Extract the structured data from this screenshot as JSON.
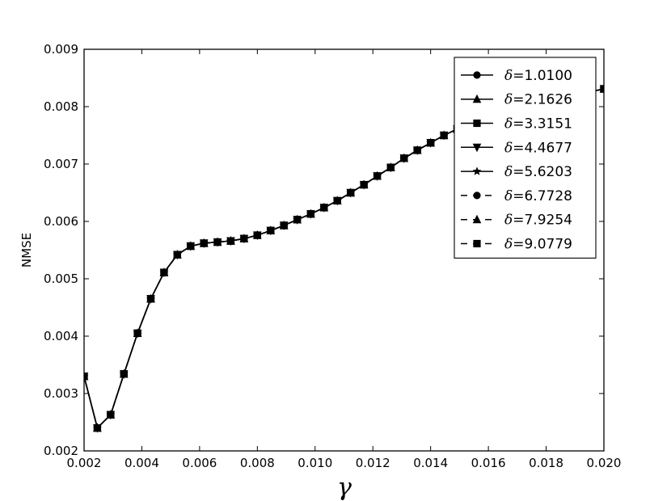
{
  "chart_data": {
    "type": "line",
    "xlabel": "γ",
    "ylabel": "NMSE",
    "xlim": [
      0.002,
      0.02
    ],
    "ylim": [
      0.002,
      0.009
    ],
    "xticks": [
      0.002,
      0.004,
      0.006,
      0.008,
      0.01,
      0.012,
      0.014,
      0.016,
      0.018,
      0.02
    ],
    "xtick_labels": [
      "0.002",
      "0.004",
      "0.006",
      "0.008",
      "0.010",
      "0.012",
      "0.014",
      "0.016",
      "0.018",
      "0.020"
    ],
    "yticks": [
      0.002,
      0.003,
      0.004,
      0.005,
      0.006,
      0.007,
      0.008,
      0.009
    ],
    "ytick_labels": [
      "0.002",
      "0.003",
      "0.004",
      "0.005",
      "0.006",
      "0.007",
      "0.008",
      "0.009"
    ],
    "grid": false,
    "legend_position": "top-right",
    "x": [
      0.002,
      0.00246,
      0.00292,
      0.00338,
      0.00385,
      0.00431,
      0.00477,
      0.00523,
      0.00569,
      0.00615,
      0.00662,
      0.00708,
      0.00754,
      0.008,
      0.00846,
      0.00892,
      0.00938,
      0.00985,
      0.01031,
      0.01077,
      0.01123,
      0.01169,
      0.01215,
      0.01262,
      0.01308,
      0.01354,
      0.014,
      0.01446,
      0.01492,
      0.01538,
      0.01585,
      0.01631,
      0.01677,
      0.01723,
      0.01769,
      0.01815,
      0.01862,
      0.01908,
      0.01954,
      0.02
    ],
    "series": [
      {
        "name": "δ=1.0100",
        "linestyle": "solid",
        "marker": "circle",
        "values": [
          0.0033,
          0.0024,
          0.00263,
          0.00334,
          0.00405,
          0.00465,
          0.00511,
          0.00542,
          0.00557,
          0.00562,
          0.00564,
          0.00566,
          0.0057,
          0.00576,
          0.00584,
          0.00593,
          0.00603,
          0.00613,
          0.00624,
          0.00636,
          0.0065,
          0.00664,
          0.00679,
          0.00694,
          0.0071,
          0.00724,
          0.00737,
          0.0075,
          0.00761,
          0.00771,
          0.0078,
          0.00788,
          0.00795,
          0.00801,
          0.00806,
          0.00811,
          0.00816,
          0.00821,
          0.00826,
          0.00831
        ]
      },
      {
        "name": "δ=2.1626",
        "linestyle": "solid",
        "marker": "triangle-up",
        "values": [
          0.0033,
          0.0024,
          0.00263,
          0.00334,
          0.00405,
          0.00465,
          0.00511,
          0.00542,
          0.00557,
          0.00562,
          0.00564,
          0.00566,
          0.0057,
          0.00576,
          0.00584,
          0.00593,
          0.00603,
          0.00613,
          0.00624,
          0.00636,
          0.0065,
          0.00664,
          0.00679,
          0.00694,
          0.0071,
          0.00724,
          0.00737,
          0.0075,
          0.00761,
          0.00771,
          0.0078,
          0.00788,
          0.00795,
          0.00801,
          0.00806,
          0.00811,
          0.00816,
          0.00821,
          0.00826,
          0.00831
        ]
      },
      {
        "name": "δ=3.3151",
        "linestyle": "solid",
        "marker": "square",
        "values": [
          0.0033,
          0.0024,
          0.00263,
          0.00334,
          0.00405,
          0.00465,
          0.00511,
          0.00542,
          0.00557,
          0.00562,
          0.00564,
          0.00566,
          0.0057,
          0.00576,
          0.00584,
          0.00593,
          0.00603,
          0.00613,
          0.00624,
          0.00636,
          0.0065,
          0.00664,
          0.00679,
          0.00694,
          0.0071,
          0.00724,
          0.00737,
          0.0075,
          0.00761,
          0.00771,
          0.0078,
          0.00788,
          0.00795,
          0.00801,
          0.00806,
          0.00811,
          0.00816,
          0.00821,
          0.00826,
          0.00831
        ]
      },
      {
        "name": "δ=4.4677",
        "linestyle": "solid",
        "marker": "triangle-down",
        "values": [
          0.0033,
          0.0024,
          0.00263,
          0.00334,
          0.00405,
          0.00465,
          0.00511,
          0.00542,
          0.00557,
          0.00562,
          0.00564,
          0.00566,
          0.0057,
          0.00576,
          0.00584,
          0.00593,
          0.00603,
          0.00613,
          0.00624,
          0.00636,
          0.0065,
          0.00664,
          0.00679,
          0.00694,
          0.0071,
          0.00724,
          0.00737,
          0.0075,
          0.00761,
          0.00771,
          0.0078,
          0.00788,
          0.00795,
          0.00801,
          0.00806,
          0.00811,
          0.00816,
          0.00821,
          0.00826,
          0.00831
        ]
      },
      {
        "name": "δ=5.6203",
        "linestyle": "solid",
        "marker": "star",
        "values": [
          0.0033,
          0.0024,
          0.00263,
          0.00334,
          0.00405,
          0.00465,
          0.00511,
          0.00542,
          0.00557,
          0.00562,
          0.00564,
          0.00566,
          0.0057,
          0.00576,
          0.00584,
          0.00593,
          0.00603,
          0.00613,
          0.00624,
          0.00636,
          0.0065,
          0.00664,
          0.00679,
          0.00694,
          0.0071,
          0.00724,
          0.00737,
          0.0075,
          0.00761,
          0.00771,
          0.0078,
          0.00788,
          0.00795,
          0.00801,
          0.00806,
          0.00811,
          0.00816,
          0.00821,
          0.00826,
          0.00831
        ]
      },
      {
        "name": "δ=6.7728",
        "linestyle": "dashed",
        "marker": "circle",
        "values": [
          0.0033,
          0.0024,
          0.00263,
          0.00334,
          0.00405,
          0.00465,
          0.00511,
          0.00542,
          0.00557,
          0.00562,
          0.00564,
          0.00566,
          0.0057,
          0.00576,
          0.00584,
          0.00593,
          0.00603,
          0.00613,
          0.00624,
          0.00636,
          0.0065,
          0.00664,
          0.00679,
          0.00694,
          0.0071,
          0.00724,
          0.00737,
          0.0075,
          0.00761,
          0.00771,
          0.0078,
          0.00788,
          0.00795,
          0.00801,
          0.00806,
          0.00811,
          0.00816,
          0.00821,
          0.00826,
          0.00831
        ]
      },
      {
        "name": "δ=7.9254",
        "linestyle": "dashed",
        "marker": "triangle-up",
        "values": [
          0.0033,
          0.0024,
          0.00263,
          0.00334,
          0.00405,
          0.00465,
          0.00511,
          0.00542,
          0.00557,
          0.00562,
          0.00564,
          0.00566,
          0.0057,
          0.00576,
          0.00584,
          0.00593,
          0.00603,
          0.00613,
          0.00624,
          0.00636,
          0.0065,
          0.00664,
          0.00679,
          0.00694,
          0.0071,
          0.00724,
          0.00737,
          0.0075,
          0.00761,
          0.00771,
          0.0078,
          0.00788,
          0.00795,
          0.00801,
          0.00806,
          0.00811,
          0.00816,
          0.00821,
          0.00826,
          0.00831
        ]
      },
      {
        "name": "δ=9.0779",
        "linestyle": "dashed",
        "marker": "square",
        "values": [
          0.0033,
          0.0024,
          0.00263,
          0.00334,
          0.00405,
          0.00465,
          0.00511,
          0.00542,
          0.00557,
          0.00562,
          0.00564,
          0.00566,
          0.0057,
          0.00576,
          0.00584,
          0.00593,
          0.00603,
          0.00613,
          0.00624,
          0.00636,
          0.0065,
          0.00664,
          0.00679,
          0.00694,
          0.0071,
          0.00724,
          0.00737,
          0.0075,
          0.00761,
          0.00771,
          0.0078,
          0.00788,
          0.00795,
          0.00801,
          0.00806,
          0.00811,
          0.00816,
          0.00821,
          0.00826,
          0.00831
        ]
      }
    ],
    "line_color": "#000000"
  }
}
